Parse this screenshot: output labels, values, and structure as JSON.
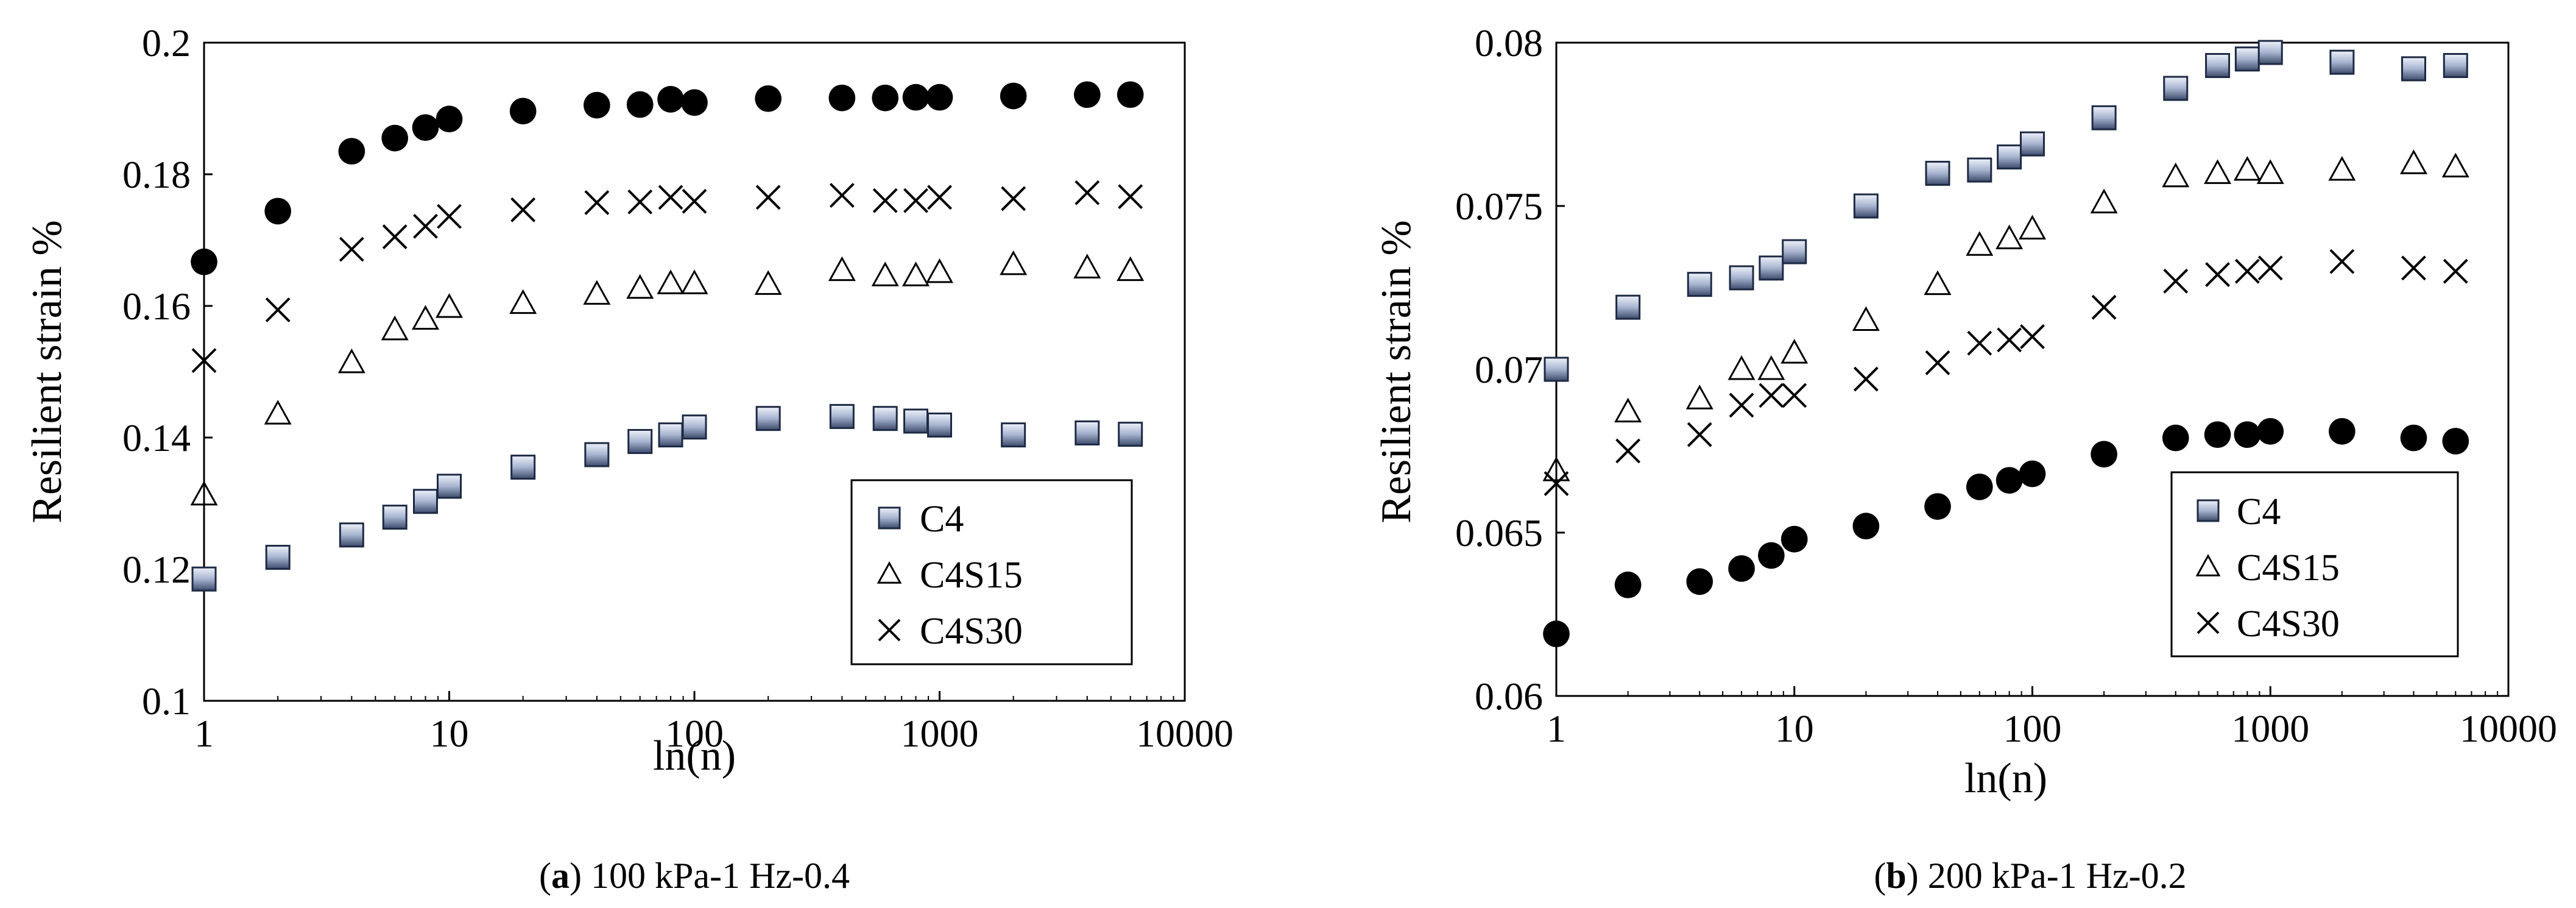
{
  "chart_data": [
    {
      "type": "scatter",
      "panel": "a",
      "caption_letter": "a",
      "caption_text": " 100 kPa-1 Hz-0.4",
      "xlabel": "ln(n)",
      "ylabel": "Resilient strain %",
      "xscale": "log",
      "xlim": [
        1,
        10000
      ],
      "ylim": [
        0.1,
        0.2
      ],
      "xticks": [
        "1",
        "10",
        "100",
        "1000",
        "10000"
      ],
      "yticks": [
        "0.1",
        "0.12",
        "0.14",
        "0.16",
        "0.18",
        "0.2"
      ],
      "legend_position": "bottom-right",
      "legend": [
        "C4",
        "C4S15",
        "C4S30"
      ],
      "series": [
        {
          "name": "C4",
          "marker": "square",
          "x": [
            1,
            2,
            4,
            6,
            8,
            10,
            20,
            40,
            60,
            80,
            100,
            200,
            400,
            600,
            800,
            1000,
            2000,
            4000,
            6000
          ],
          "y": [
            0.1185,
            0.1218,
            0.1252,
            0.1279,
            0.1303,
            0.1326,
            0.1355,
            0.1374,
            0.1394,
            0.1404,
            0.1416,
            0.1429,
            0.1432,
            0.1429,
            0.1425,
            0.1419,
            0.1404,
            0.1407,
            0.1405
          ]
        },
        {
          "name": "C4S15",
          "marker": "triangle",
          "x": [
            1,
            2,
            4,
            6,
            8,
            10,
            20,
            40,
            60,
            80,
            100,
            200,
            400,
            600,
            800,
            1000,
            2000,
            4000,
            6000
          ],
          "y": [
            0.1313,
            0.1436,
            0.1514,
            0.1564,
            0.158,
            0.1598,
            0.1604,
            0.1618,
            0.1627,
            0.1634,
            0.1634,
            0.1633,
            0.1654,
            0.1646,
            0.1646,
            0.1651,
            0.1663,
            0.1658,
            0.1654
          ]
        },
        {
          "name": "C4S30",
          "marker": "cross",
          "x": [
            1,
            2,
            4,
            6,
            8,
            10,
            20,
            40,
            60,
            80,
            100,
            200,
            400,
            600,
            800,
            1000,
            2000,
            4000,
            6000
          ],
          "y": [
            0.1517,
            0.1594,
            0.1686,
            0.1705,
            0.1721,
            0.1736,
            0.1746,
            0.1757,
            0.1758,
            0.1765,
            0.1759,
            0.1765,
            0.1768,
            0.176,
            0.176,
            0.1765,
            0.1763,
            0.1772,
            0.1766
          ]
        },
        {
          "name": "",
          "marker": "circle",
          "x": [
            1,
            2,
            4,
            6,
            8,
            10,
            20,
            40,
            60,
            80,
            100,
            200,
            400,
            600,
            800,
            1000,
            2000,
            4000,
            6000
          ],
          "y": [
            0.1667,
            0.1744,
            0.1835,
            0.1855,
            0.1871,
            0.1884,
            0.1896,
            0.1905,
            0.1906,
            0.1914,
            0.1909,
            0.1915,
            0.1916,
            0.1916,
            0.1917,
            0.1917,
            0.1919,
            0.1921,
            0.1921
          ]
        }
      ]
    },
    {
      "type": "scatter",
      "panel": "b",
      "caption_letter": "b",
      "caption_text": " 200 kPa-1 Hz-0.2",
      "xlabel": "ln(n)",
      "ylabel": "Resilient strain %",
      "xscale": "log",
      "xlim": [
        1,
        10000
      ],
      "ylim": [
        0.06,
        0.08
      ],
      "xticks": [
        "1",
        "10",
        "100",
        "1000",
        "10000"
      ],
      "yticks": [
        "0.06",
        "0.065",
        "0.07",
        "0.075",
        "0.08"
      ],
      "legend_position": "bottom-right",
      "legend": [
        "C4",
        "C4S15",
        "C4S30"
      ],
      "series": [
        {
          "name": "C4",
          "marker": "square",
          "x": [
            1,
            2,
            4,
            6,
            8,
            10,
            20,
            40,
            60,
            80,
            100,
            200,
            400,
            600,
            800,
            1000,
            2000,
            4000,
            6000
          ],
          "y": [
            0.07,
            0.0719,
            0.0726,
            0.0728,
            0.0731,
            0.0736,
            0.075,
            0.076,
            0.0761,
            0.0765,
            0.0769,
            0.0777,
            0.0786,
            0.0793,
            0.0795,
            0.0797,
            0.0794,
            0.0792,
            0.0793
          ]
        },
        {
          "name": "C4S15",
          "marker": "triangle",
          "x": [
            1,
            2,
            4,
            6,
            8,
            10,
            20,
            40,
            60,
            80,
            100,
            200,
            400,
            600,
            800,
            1000,
            2000,
            4000,
            6000
          ],
          "y": [
            0.0669,
            0.0687,
            0.0691,
            0.07,
            0.07,
            0.0705,
            0.0715,
            0.0726,
            0.0738,
            0.074,
            0.0743,
            0.0751,
            0.0759,
            0.076,
            0.0761,
            0.076,
            0.0761,
            0.0763,
            0.0762
          ]
        },
        {
          "name": "C4S30",
          "marker": "cross",
          "x": [
            1,
            2,
            4,
            6,
            8,
            10,
            20,
            40,
            60,
            80,
            100,
            200,
            400,
            600,
            800,
            1000,
            2000,
            4000,
            6000
          ],
          "y": [
            0.0665,
            0.0675,
            0.068,
            0.0689,
            0.0692,
            0.0692,
            0.0697,
            0.0702,
            0.0708,
            0.0709,
            0.071,
            0.0719,
            0.0727,
            0.0729,
            0.073,
            0.0731,
            0.0733,
            0.0731,
            0.073
          ]
        },
        {
          "name": "",
          "marker": "circle",
          "x": [
            1,
            2,
            4,
            6,
            8,
            10,
            20,
            40,
            60,
            80,
            100,
            200,
            400,
            600,
            800,
            1000,
            2000,
            4000,
            6000
          ],
          "y": [
            0.0619,
            0.0634,
            0.0635,
            0.0639,
            0.0643,
            0.0648,
            0.0652,
            0.0658,
            0.0664,
            0.0666,
            0.0668,
            0.0674,
            0.0679,
            0.068,
            0.068,
            0.0681,
            0.0681,
            0.0679,
            0.0678
          ]
        }
      ]
    }
  ]
}
